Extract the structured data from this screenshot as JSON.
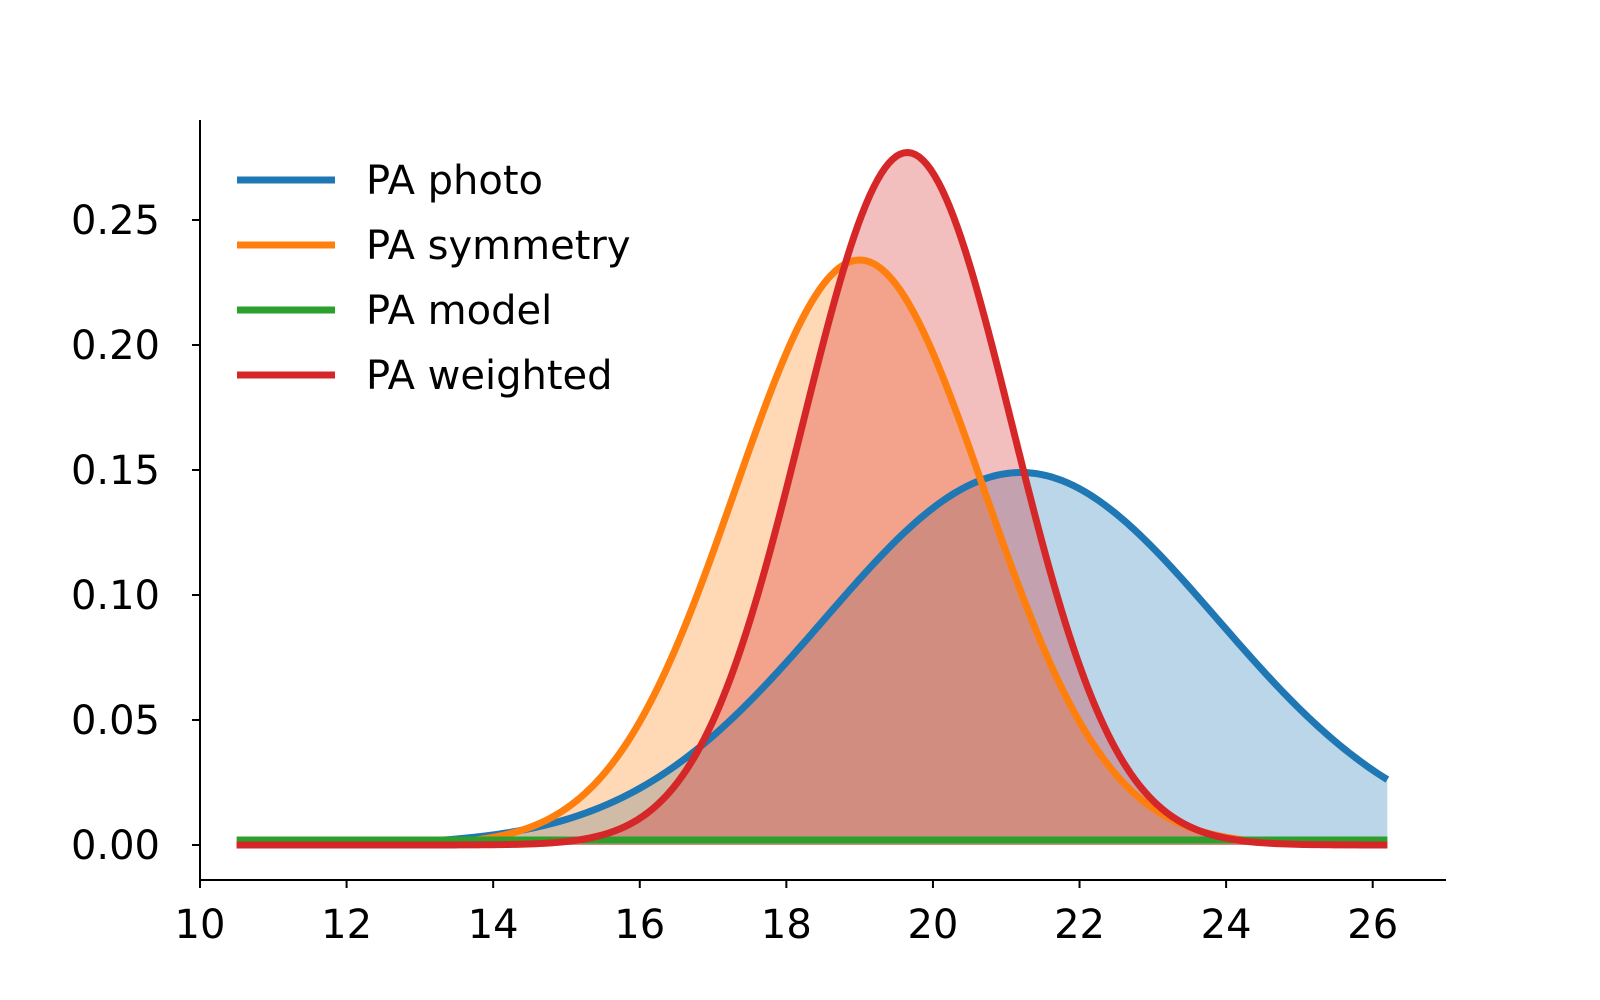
{
  "chart_data": {
    "type": "area",
    "title": "",
    "xlabel": "",
    "ylabel": "",
    "xlim": [
      10,
      27
    ],
    "ylim": [
      -0.014,
      0.29
    ],
    "x_domain": [
      10.5,
      26.2
    ],
    "xticks": [
      10,
      12,
      14,
      16,
      18,
      20,
      22,
      24,
      26
    ],
    "xtick_labels": [
      "10",
      "12",
      "14",
      "16",
      "18",
      "20",
      "22",
      "24",
      "26"
    ],
    "yticks": [
      0.0,
      0.05,
      0.1,
      0.15,
      0.2,
      0.25
    ],
    "ytick_labels": [
      "0.00",
      "0.05",
      "0.10",
      "0.15",
      "0.20",
      "0.25"
    ],
    "grid": false,
    "legend_position": "top-left",
    "series": [
      {
        "name": "PA photo",
        "color": "#1f77b4",
        "distribution": "normal",
        "mean": 21.2,
        "std": 2.68,
        "peak": 0.149,
        "filled": true
      },
      {
        "name": "PA symmetry",
        "color": "#ff7f0e",
        "distribution": "normal",
        "mean": 19.0,
        "std": 1.7,
        "peak": 0.234,
        "filled": true
      },
      {
        "name": "PA model",
        "color": "#2ca02c",
        "distribution": "constant",
        "value": 0.002,
        "filled": false
      },
      {
        "name": "PA weighted",
        "color": "#d62728",
        "distribution": "normal",
        "mean": 19.65,
        "std": 1.43,
        "peak": 0.277,
        "filled": true
      }
    ]
  }
}
